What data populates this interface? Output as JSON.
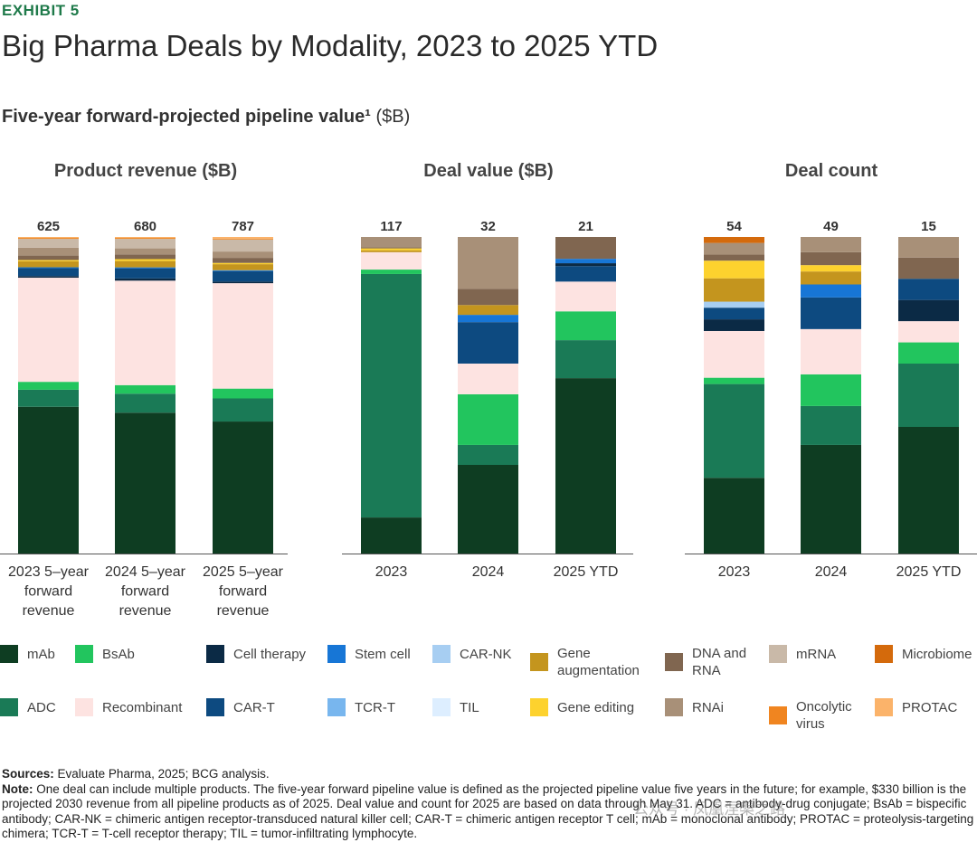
{
  "header": {
    "exhibit": "EXHIBIT 5",
    "title": "Big Pharma Deals by Modality, 2023 to 2025 YTD",
    "subtitle_bold": "Five-year forward-projected pipeline value¹",
    "subtitle_unit": "($B)"
  },
  "colors": {
    "mAb": "#0e3d22",
    "BsAb": "#22c55e",
    "Cell therapy": "#0b2a45",
    "Stem cell": "#1776d6",
    "CAR-NK": "#a7cef2",
    "Gene augmentation": "#c4951e",
    "DNA and RNA": "#806650",
    "mRNA": "#c9b9a8",
    "Microbiome": "#d46a0c",
    "ADC": "#1a7a56",
    "Recombinant": "#fde3e1",
    "CAR-T": "#0d4a80",
    "TCR-T": "#78b6ee",
    "TIL": "#ddeeff",
    "Gene editing": "#fdd22e",
    "RNAi": "#a89078",
    "Oncolytic virus": "#f08520",
    "PROTAC": "#fbb36a"
  },
  "chart_data": [
    {
      "type": "bar",
      "stacked": true,
      "normalized": true,
      "title": "Product revenue ($B)",
      "categories": [
        "2023 5–year forward revenue",
        "2024 5–year forward revenue",
        "2025 5–year forward revenue"
      ],
      "category_lines": [
        [
          "2023 5–year",
          "forward",
          "revenue"
        ],
        [
          "2024 5–year",
          "forward",
          "revenue"
        ],
        [
          "2025 5–year",
          "forward",
          "revenue"
        ]
      ],
      "totals": [
        "625",
        "680",
        "787"
      ],
      "series": [
        {
          "name": "mAb",
          "values": [
            46.5,
            44.5,
            41.7
          ]
        },
        {
          "name": "ADC",
          "values": [
            5.4,
            6.0,
            7.3
          ]
        },
        {
          "name": "BsAb",
          "values": [
            2.5,
            2.7,
            3.1
          ]
        },
        {
          "name": "Recombinant",
          "values": [
            33.0,
            33.0,
            33.3
          ]
        },
        {
          "name": "Cell therapy",
          "values": [
            0.5,
            0.7,
            0.5
          ]
        },
        {
          "name": "CAR-T",
          "values": [
            2.5,
            3.2,
            3.3
          ]
        },
        {
          "name": "Stem cell",
          "values": [
            0.3,
            0.3,
            0.3
          ]
        },
        {
          "name": "Gene augmentation",
          "values": [
            1.9,
            2.0,
            1.9
          ]
        },
        {
          "name": "Gene editing",
          "values": [
            0.4,
            0.6,
            0.4
          ]
        },
        {
          "name": "DNA and RNA",
          "values": [
            1.4,
            1.5,
            1.6
          ]
        },
        {
          "name": "RNAi",
          "values": [
            2.5,
            1.9,
            2.0
          ]
        },
        {
          "name": "mRNA",
          "values": [
            2.8,
            3.0,
            3.8
          ]
        },
        {
          "name": "Oncolytic virus",
          "values": [
            0.3,
            0.3,
            0.3
          ]
        },
        {
          "name": "PROTAC",
          "values": [
            0.3,
            0.3,
            0.5
          ]
        }
      ]
    },
    {
      "type": "bar",
      "stacked": true,
      "normalized": true,
      "title": "Deal value ($B)",
      "categories": [
        "2023",
        "2024",
        "2025 YTD"
      ],
      "category_lines": [
        [
          "2023"
        ],
        [
          "2024"
        ],
        [
          "2025 YTD"
        ]
      ],
      "totals": [
        "117",
        "32",
        "21"
      ],
      "series": [
        {
          "name": "mAb",
          "values": [
            11.4,
            28.0,
            55.4
          ]
        },
        {
          "name": "ADC",
          "values": [
            76.9,
            6.3,
            12.0
          ]
        },
        {
          "name": "BsAb",
          "values": [
            1.4,
            16.0,
            9.1
          ]
        },
        {
          "name": "Recombinant",
          "values": [
            5.5,
            9.7,
            9.4
          ]
        },
        {
          "name": "CAR-T",
          "values": [
            0,
            13.1,
            4.9
          ]
        },
        {
          "name": "Cell therapy",
          "values": [
            0,
            0,
            0.9
          ]
        },
        {
          "name": "Stem cell",
          "values": [
            0,
            2.3,
            1.4
          ]
        },
        {
          "name": "Gene augmentation",
          "values": [
            0.6,
            3.1,
            0
          ]
        },
        {
          "name": "Gene editing",
          "values": [
            0.6,
            0,
            0
          ]
        },
        {
          "name": "DNA and RNA",
          "values": [
            0.3,
            5.1,
            6.9
          ]
        },
        {
          "name": "RNAi",
          "values": [
            3.3,
            16.4,
            0
          ]
        }
      ]
    },
    {
      "type": "bar",
      "stacked": true,
      "normalized": true,
      "title": "Deal count",
      "categories": [
        "2023",
        "2024",
        "2025 YTD"
      ],
      "category_lines": [
        [
          "2023"
        ],
        [
          "2024"
        ],
        [
          "2025 YTD"
        ]
      ],
      "totals": [
        "54",
        "49",
        "15"
      ],
      "series": [
        {
          "name": "mAb",
          "values": [
            24.0,
            34.3,
            40.0
          ]
        },
        {
          "name": "ADC",
          "values": [
            29.7,
            12.3,
            20.0
          ]
        },
        {
          "name": "BsAb",
          "values": [
            2.0,
            10.0,
            6.7
          ]
        },
        {
          "name": "Recombinant",
          "values": [
            14.8,
            14.3,
            6.7
          ]
        },
        {
          "name": "Cell therapy",
          "values": [
            3.7,
            0,
            6.7
          ]
        },
        {
          "name": "CAR-T",
          "values": [
            3.7,
            10.0,
            6.7
          ]
        },
        {
          "name": "Stem cell",
          "values": [
            0,
            4.1,
            0
          ]
        },
        {
          "name": "CAR-NK",
          "values": [
            1.9,
            0,
            0
          ]
        },
        {
          "name": "Gene augmentation",
          "values": [
            7.4,
            4.1,
            0
          ]
        },
        {
          "name": "Gene editing",
          "values": [
            5.6,
            2.0,
            0
          ]
        },
        {
          "name": "DNA and RNA",
          "values": [
            1.9,
            4.1,
            6.7
          ]
        },
        {
          "name": "RNAi",
          "values": [
            3.7,
            4.8,
            6.5
          ]
        },
        {
          "name": "Microbiome",
          "values": [
            1.9,
            0,
            0
          ]
        }
      ]
    }
  ],
  "legend": [
    {
      "key": "mAb",
      "label": "mAb"
    },
    {
      "key": "BsAb",
      "label": "BsAb"
    },
    {
      "key": "Cell therapy",
      "label": "Cell therapy"
    },
    {
      "key": "Stem cell",
      "label": "Stem cell"
    },
    {
      "key": "CAR-NK",
      "label": "CAR-NK"
    },
    {
      "key": "Gene augmentation",
      "label": "Gene augmentation"
    },
    {
      "key": "DNA and RNA",
      "label": "DNA and RNA"
    },
    {
      "key": "mRNA",
      "label": "mRNA"
    },
    {
      "key": "Microbiome",
      "label": "Microbiome"
    },
    {
      "key": "ADC",
      "label": "ADC"
    },
    {
      "key": "Recombinant",
      "label": "Recombinant"
    },
    {
      "key": "CAR-T",
      "label": "CAR-T"
    },
    {
      "key": "TCR-T",
      "label": "TCR-T"
    },
    {
      "key": "TIL",
      "label": "TIL"
    },
    {
      "key": "Gene editing",
      "label": "Gene editing"
    },
    {
      "key": "RNAi",
      "label": "RNAi"
    },
    {
      "key": "Oncolytic virus",
      "label": "Oncolytic virus"
    },
    {
      "key": "PROTAC",
      "label": "PROTAC"
    }
  ],
  "notes": {
    "sources_label": "Sources:",
    "sources_text": "Evaluate Pharma, 2025; BCG analysis.",
    "note_label": "Note:",
    "note_text": "One deal can include multiple products. The five-year forward pipeline value is defined as the projected pipeline value five years in the future; for example, $330 billion is the projected 2030 revenue from all pipeline products as of 2025. Deal value and count for 2025 are based on data through May 31. ADC = antibody-drug conjugate; BsAb = bispecific antibody; CAR-NK = chimeric antigen receptor-transduced natural killer cell; CAR-T = chimeric antigen receptor T cell; mAb = monoclonal antibody; PROTAC = proteolysis-targeting chimera; TCR-T = T-cell receptor therapy; TIL = tumor-infiltrating lymphocyte."
  },
  "watermark": "公众号 · 凤凰涅槃之路"
}
